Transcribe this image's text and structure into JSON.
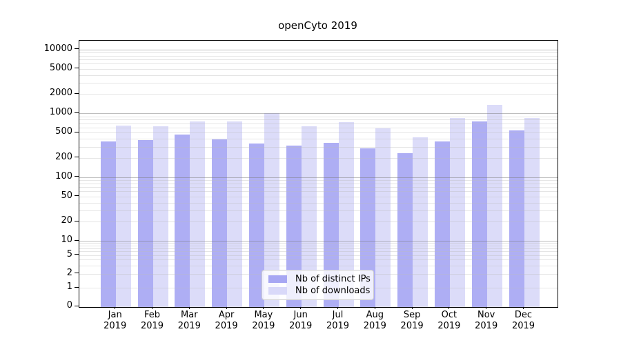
{
  "title": "openCyto 2019",
  "legend": {
    "items": [
      {
        "label": "Nb of distinct IPs",
        "color": "#a7a7f3"
      },
      {
        "label": "Nb of downloads",
        "color": "#d9d9f9"
      }
    ]
  },
  "chart_data": {
    "type": "bar",
    "title": "openCyto 2019",
    "categories": [
      "Jan",
      "Feb",
      "Mar",
      "Apr",
      "May",
      "Jun",
      "Jul",
      "Aug",
      "Sep",
      "Oct",
      "Nov",
      "Dec"
    ],
    "category_year": "2019",
    "series": [
      {
        "name": "Nb of distinct IPs",
        "color": "#a7a7f3",
        "values": [
          360,
          385,
          470,
          395,
          335,
          310,
          345,
          285,
          240,
          365,
          750,
          545
        ]
      },
      {
        "name": "Nb of downloads",
        "color": "#d9d9f9",
        "values": [
          645,
          630,
          755,
          750,
          1000,
          630,
          730,
          585,
          425,
          845,
          1350,
          850
        ]
      }
    ],
    "xlabel": "",
    "ylabel": "",
    "yscale": "symlog",
    "yticks": [
      0,
      1,
      2,
      5,
      10,
      20,
      50,
      100,
      200,
      500,
      1000,
      2000,
      5000,
      10000
    ],
    "ylim": [
      0,
      13700
    ],
    "grid": "both",
    "legend_position": "lower-center"
  }
}
